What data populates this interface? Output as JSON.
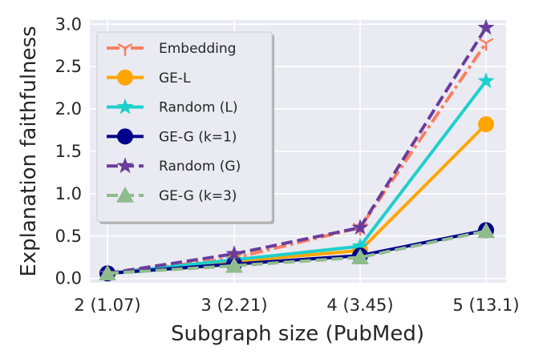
{
  "chart_data": {
    "type": "line",
    "title": "",
    "xlabel": "Subgraph size (PubMed)",
    "ylabel": "Explanation faithfulness",
    "categories": [
      "2 (1.07)",
      "3 (2.21)",
      "4 (3.45)",
      "5 (13.1)"
    ],
    "ylim": [
      -0.05,
      3.05
    ],
    "yticks": [
      "0.0",
      "0.5",
      "1.0",
      "1.5",
      "2.0",
      "2.5",
      "3.0"
    ],
    "grid": true,
    "legend_position": "top-left",
    "series": [
      {
        "name": "Embedding",
        "values": [
          0.06,
          0.24,
          0.6,
          2.78
        ],
        "color": "#fa8060",
        "dash": "dashdot",
        "marker": "tri-down",
        "linewidth": 4
      },
      {
        "name": "GE-L",
        "values": [
          0.06,
          0.2,
          0.33,
          1.82
        ],
        "color": "#ffa500",
        "dash": "solid",
        "marker": "circle",
        "linewidth": 4
      },
      {
        "name": "Random (L)",
        "values": [
          0.06,
          0.22,
          0.38,
          2.33
        ],
        "color": "#1fcfcc",
        "dash": "solid",
        "marker": "star",
        "linewidth": 4
      },
      {
        "name": "GE-G (k=1)",
        "values": [
          0.06,
          0.17,
          0.27,
          0.57
        ],
        "color": "#00008b",
        "dash": "solid",
        "marker": "circle",
        "linewidth": 4
      },
      {
        "name": "Random (G)",
        "values": [
          0.06,
          0.29,
          0.6,
          2.96
        ],
        "color": "#6a3d9a",
        "dash": "dashed",
        "marker": "star",
        "linewidth": 4
      },
      {
        "name": "GE-G (k=3)",
        "values": [
          0.06,
          0.15,
          0.25,
          0.56
        ],
        "color": "#8fbc8f",
        "dash": "dashed",
        "marker": "triangle",
        "linewidth": 4
      }
    ]
  }
}
